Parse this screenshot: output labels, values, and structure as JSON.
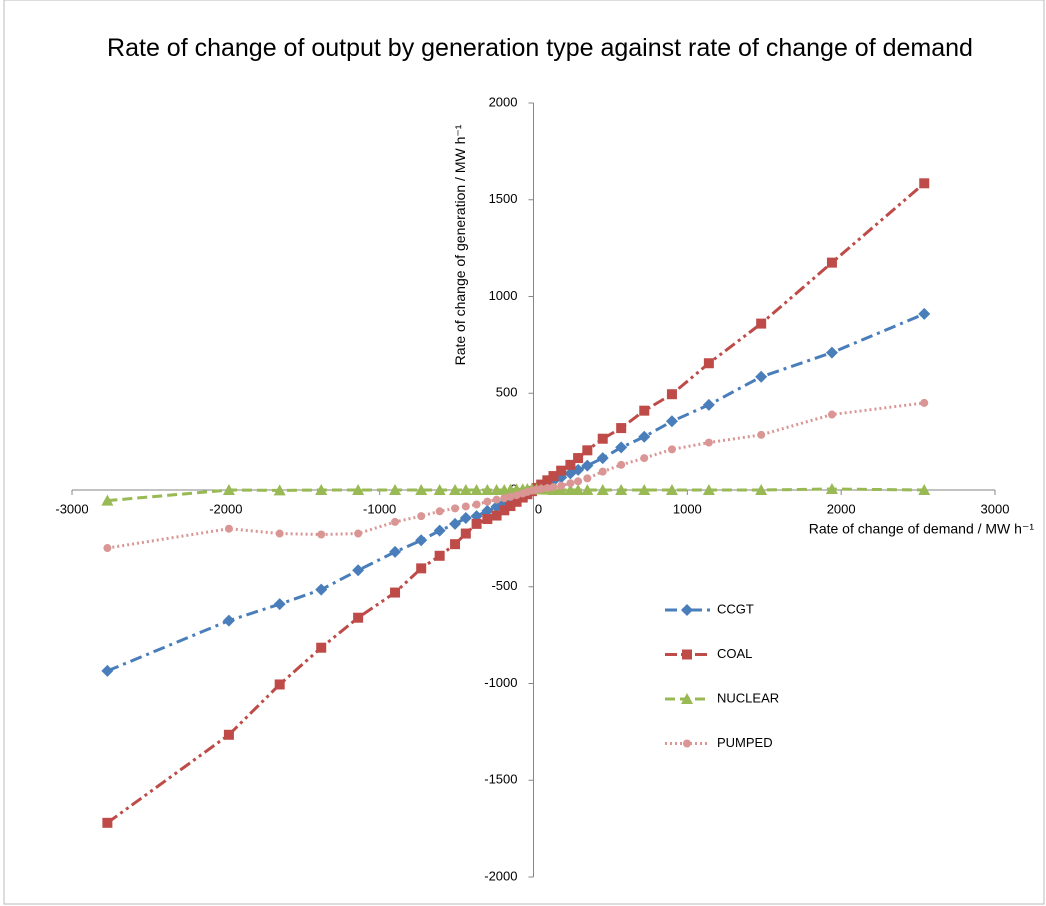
{
  "chart_data": {
    "type": "line",
    "title": "Rate of change of output by generation type against rate of change of demand",
    "x_label": "Rate of change of demand / MW h⁻¹",
    "y_label": "Rate of change of generation / MW h⁻¹",
    "xlim": [
      -3000,
      3000
    ],
    "xticks": [
      -3000,
      -2000,
      -1000,
      0,
      1000,
      2000,
      3000
    ],
    "ylim": [
      -2000,
      2000
    ],
    "yticks": [
      -2000,
      -1500,
      -1000,
      -500,
      0,
      500,
      1000,
      1500,
      2000
    ],
    "grid": false,
    "legend": "lower right",
    "x": [
      -2770,
      -1980,
      -1650,
      -1380,
      -1140,
      -900,
      -730,
      -610,
      -510,
      -440,
      -370,
      -300,
      -240,
      -190,
      -150,
      -110,
      -70,
      -40,
      -10,
      20,
      50,
      90,
      130,
      180,
      240,
      290,
      350,
      450,
      570,
      720,
      900,
      1140,
      1480,
      1940,
      2540
    ],
    "series": [
      {
        "name": "CCGT",
        "color": "#4a7ebb",
        "marker": "diamond",
        "dash": "dash-dot",
        "values": [
          -935,
          -675,
          -590,
          -515,
          -415,
          -320,
          -260,
          -210,
          -175,
          -145,
          -135,
          -108,
          -86,
          -68,
          -54,
          -40,
          -25,
          -14,
          -4,
          7,
          18,
          32,
          47,
          65,
          86,
          104,
          126,
          165,
          220,
          275,
          355,
          440,
          585,
          710,
          910
        ]
      },
      {
        "name": "COAL",
        "color": "#be4b48",
        "marker": "square",
        "dash": "dash-dot-dot",
        "values": [
          -1720,
          -1265,
          -1005,
          -815,
          -660,
          -530,
          -405,
          -340,
          -280,
          -225,
          -175,
          -150,
          -132,
          -105,
          -83,
          -61,
          -39,
          -22,
          -6,
          11,
          28,
          50,
          72,
          100,
          130,
          165,
          205,
          265,
          320,
          410,
          495,
          655,
          860,
          1175,
          1585
        ]
      },
      {
        "name": "NUCLEAR",
        "color": "#98b954",
        "marker": "triangle",
        "dash": "dash",
        "values": [
          -55,
          0,
          -2,
          0,
          0,
          0,
          0,
          0,
          0,
          0,
          0,
          0,
          0,
          0,
          2,
          3,
          4,
          5,
          5,
          4,
          3,
          2,
          0,
          0,
          0,
          0,
          0,
          0,
          0,
          0,
          0,
          0,
          0,
          5,
          0
        ]
      },
      {
        "name": "PUMPED",
        "color": "#d99694",
        "marker": "circle",
        "dash": "dot",
        "values": [
          -300,
          -200,
          -225,
          -230,
          -225,
          -165,
          -135,
          -110,
          -95,
          -85,
          -75,
          -60,
          -50,
          -42,
          -35,
          -27,
          -18,
          -10,
          -3,
          2,
          6,
          10,
          15,
          22,
          35,
          45,
          60,
          95,
          130,
          165,
          210,
          245,
          285,
          390,
          450
        ]
      }
    ]
  }
}
